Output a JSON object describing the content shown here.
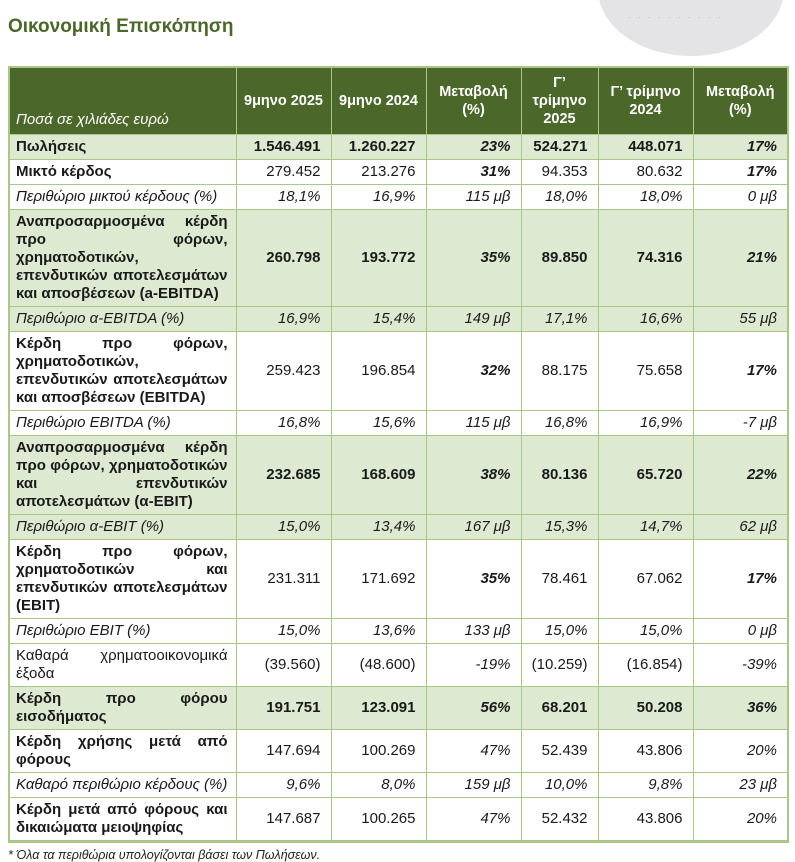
{
  "page": {
    "title": "Οικονομική Επισκόπηση",
    "footnote": "* Όλα τα περιθώρια υπολογίζονται βάσει των Πωλήσεων."
  },
  "colors": {
    "header_bg": "#4b672a",
    "header_text": "#ffffff",
    "shaded_row_bg": "#dde9d0",
    "border": "#a9c789",
    "title_text": "#4b672a",
    "logo_gray": "#e4e4e6"
  },
  "table": {
    "unit_label": "Ποσά σε χιλιάδες ευρώ",
    "columns": [
      "9μηνο 2025",
      "9μηνο 2024",
      "Μεταβολή (%)",
      "Γ’ τρίμηνο 2025",
      "Γ’ τρίμηνο 2024",
      "Μεταβολή (%)"
    ],
    "rows": [
      {
        "label": "Πωλήσεις",
        "values": [
          "1.546.491",
          "1.260.227",
          "23%",
          "524.271",
          "448.071",
          "17%"
        ],
        "shaded": true,
        "label_style": "bold",
        "num_style": "bold",
        "pct_style": "bold-italic"
      },
      {
        "label": "Μικτό κέρδος",
        "values": [
          "279.452",
          "213.276",
          "31%",
          "94.353",
          "80.632",
          "17%"
        ],
        "shaded": false,
        "label_style": "bold",
        "num_style": "regular",
        "pct_style": "bold-italic"
      },
      {
        "label": "Περιθώριο μικτού κέρδους (%)",
        "values": [
          "18,1%",
          "16,9%",
          "115 μβ",
          "18,0%",
          "18,0%",
          "0 μβ"
        ],
        "shaded": false,
        "label_style": "italic",
        "num_style": "italic",
        "pct_style": "italic"
      },
      {
        "label": "Αναπροσαρμοσμένα κέρδη προ φόρων, χρηματοδοτικών, επενδυτικών αποτελεσμάτων και αποσβέσεων (a-EBITDA)",
        "values": [
          "260.798",
          "193.772",
          "35%",
          "89.850",
          "74.316",
          "21%"
        ],
        "shaded": true,
        "label_style": "bold",
        "num_style": "bold",
        "pct_style": "bold-italic"
      },
      {
        "label": "Περιθώριο α-EBITDA (%)",
        "values": [
          "16,9%",
          "15,4%",
          "149 μβ",
          "17,1%",
          "16,6%",
          "55 μβ"
        ],
        "shaded": true,
        "label_style": "italic",
        "num_style": "italic",
        "pct_style": "italic"
      },
      {
        "label": "Κέρδη προ φόρων, χρηματοδοτικών, επενδυτικών αποτελεσμάτων και αποσβέσεων (EBITDA)",
        "values": [
          "259.423",
          "196.854",
          "32%",
          "88.175",
          "75.658",
          "17%"
        ],
        "shaded": false,
        "label_style": "bold",
        "num_style": "regular",
        "pct_style": "bold-italic"
      },
      {
        "label": "Περιθώριο EBITDA (%)",
        "values": [
          "16,8%",
          "15,6%",
          "115 μβ",
          "16,8%",
          "16,9%",
          "-7 μβ"
        ],
        "shaded": false,
        "label_style": "italic",
        "num_style": "italic",
        "pct_style": "italic"
      },
      {
        "label": "Αναπροσαρμοσμένα κέρδη προ φόρων, χρηματοδοτικών και επενδυτικών αποτελεσμάτων (α-EBIT)",
        "values": [
          "232.685",
          "168.609",
          "38%",
          "80.136",
          "65.720",
          "22%"
        ],
        "shaded": true,
        "label_style": "bold",
        "num_style": "bold",
        "pct_style": "bold-italic"
      },
      {
        "label": "Περιθώριο α-EBIT (%)",
        "values": [
          "15,0%",
          "13,4%",
          "167 μβ",
          "15,3%",
          "14,7%",
          "62 μβ"
        ],
        "shaded": true,
        "label_style": "italic",
        "num_style": "italic",
        "pct_style": "italic"
      },
      {
        "label": "Κέρδη προ φόρων, χρηματοδοτικών και επενδυτικών αποτελεσμάτων (EBIT)",
        "values": [
          "231.311",
          "171.692",
          "35%",
          "78.461",
          "67.062",
          "17%"
        ],
        "shaded": false,
        "label_style": "bold",
        "num_style": "regular",
        "pct_style": "bold-italic"
      },
      {
        "label": "Περιθώριο EBIT (%)",
        "values": [
          "15,0%",
          "13,6%",
          "133 μβ",
          "15,0%",
          "15,0%",
          "0 μβ"
        ],
        "shaded": false,
        "label_style": "italic",
        "num_style": "italic",
        "pct_style": "italic"
      },
      {
        "label": "Καθαρά χρηματοοικονομικά έξοδα",
        "values": [
          "(39.560)",
          "(48.600)",
          "-19%",
          "(10.259)",
          "(16.854)",
          "-39%"
        ],
        "shaded": false,
        "label_style": "regular",
        "num_style": "regular",
        "pct_style": "italic"
      },
      {
        "label": "Κέρδη προ φόρου εισοδήματος",
        "values": [
          "191.751",
          "123.091",
          "56%",
          "68.201",
          "50.208",
          "36%"
        ],
        "shaded": true,
        "label_style": "bold",
        "num_style": "bold",
        "pct_style": "bold-italic"
      },
      {
        "label": "Κέρδη χρήσης μετά από φόρους",
        "values": [
          "147.694",
          "100.269",
          "47%",
          "52.439",
          "43.806",
          "20%"
        ],
        "shaded": false,
        "label_style": "bold",
        "num_style": "regular",
        "pct_style": "italic"
      },
      {
        "label": "Καθαρό περιθώριο κέρδους (%)",
        "values": [
          "9,6%",
          "8,0%",
          "159 μβ",
          "10,0%",
          "9,8%",
          "23 μβ"
        ],
        "shaded": false,
        "label_style": "italic",
        "num_style": "italic",
        "pct_style": "italic"
      },
      {
        "label": "Κέρδη μετά από φόρους και δικαιώματα μειοψηφίας",
        "values": [
          "147.687",
          "100.265",
          "47%",
          "52.432",
          "43.806",
          "20%"
        ],
        "shaded": false,
        "label_style": "bold",
        "num_style": "regular",
        "pct_style": "italic"
      }
    ]
  }
}
